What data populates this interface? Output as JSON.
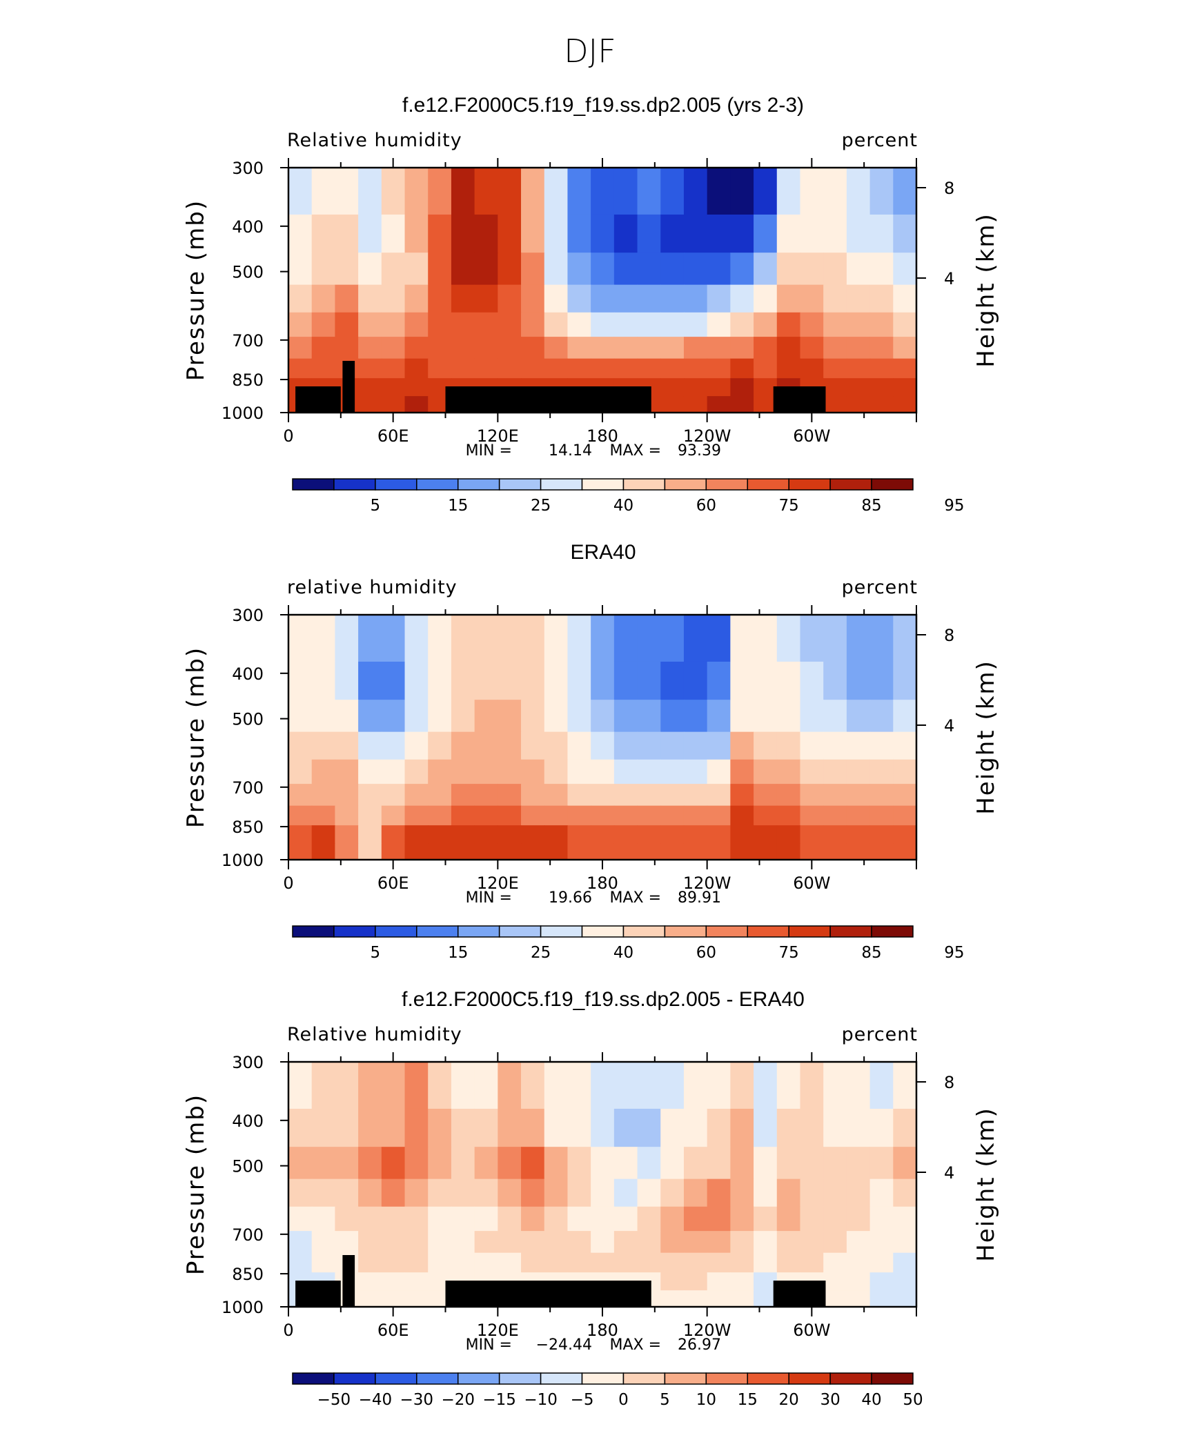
{
  "page": {
    "title": "DJF"
  },
  "chart_data": [
    {
      "type": "heatmap",
      "title": "f.e12.F2000C5.f19_f19.ss.dp2.005 (yrs 2-3)",
      "variable": "Relative humidity",
      "units": "percent",
      "ylabel": "Pressure (mb)",
      "ylabel_right": "Height (km)",
      "x_ticks": [
        "0",
        "60E",
        "120E",
        "180",
        "120W",
        "60W"
      ],
      "y_ticks": [
        "300",
        "400",
        "500",
        "700",
        "850",
        "1000"
      ],
      "y_ticks_right": [
        "8",
        "4"
      ],
      "ylim": [
        1000,
        300
      ],
      "stats": {
        "min_label": "MIN =",
        "min": "14.14",
        "max_label": "MAX =",
        "max": "93.39"
      },
      "colorbar": {
        "labels": [
          "5",
          "15",
          "25",
          "40",
          "60",
          "75",
          "85",
          "95"
        ],
        "colors": [
          "#0b0f7a",
          "#1632c9",
          "#2c5be3",
          "#4c80ef",
          "#7aa6f4",
          "#a9c6f7",
          "#d6e6fa",
          "#fff0e1",
          "#fcd3b8",
          "#f8ae8a",
          "#f2845d",
          "#e85a30",
          "#d53a12",
          "#b0200c",
          "#7d0b06"
        ]
      },
      "levels": [
        [
          6,
          7,
          7,
          6,
          8,
          9,
          10,
          13,
          12,
          12,
          9,
          6,
          3,
          2,
          2,
          3,
          2,
          1,
          0,
          0,
          1,
          6,
          7,
          7,
          6,
          5,
          4
        ],
        [
          7,
          8,
          8,
          6,
          7,
          9,
          11,
          13,
          13,
          12,
          9,
          6,
          3,
          2,
          1,
          2,
          1,
          1,
          1,
          1,
          3,
          7,
          7,
          7,
          6,
          6,
          5
        ],
        [
          7,
          8,
          8,
          7,
          8,
          8,
          11,
          13,
          13,
          12,
          10,
          6,
          4,
          3,
          2,
          2,
          2,
          2,
          2,
          3,
          5,
          8,
          8,
          8,
          7,
          7,
          6
        ],
        [
          8,
          9,
          10,
          8,
          8,
          9,
          11,
          12,
          12,
          11,
          10,
          7,
          5,
          4,
          4,
          4,
          4,
          4,
          5,
          6,
          7,
          9,
          9,
          8,
          8,
          8,
          7
        ],
        [
          9,
          10,
          11,
          9,
          9,
          10,
          11,
          11,
          11,
          11,
          10,
          8,
          7,
          6,
          6,
          6,
          6,
          6,
          7,
          8,
          9,
          11,
          10,
          9,
          9,
          9,
          8
        ],
        [
          10,
          11,
          11,
          10,
          10,
          11,
          11,
          11,
          11,
          11,
          11,
          10,
          9,
          9,
          9,
          9,
          9,
          10,
          10,
          10,
          11,
          12,
          11,
          10,
          10,
          10,
          9
        ],
        [
          11,
          11,
          11,
          11,
          11,
          12,
          11,
          11,
          11,
          11,
          11,
          11,
          11,
          11,
          11,
          11,
          11,
          11,
          11,
          12,
          11,
          12,
          12,
          11,
          11,
          11,
          11
        ],
        [
          12,
          12,
          12,
          12,
          12,
          12,
          12,
          12,
          12,
          12,
          12,
          12,
          12,
          12,
          12,
          12,
          12,
          12,
          12,
          13,
          12,
          13,
          12,
          12,
          12,
          12,
          12
        ],
        [
          12,
          12,
          12,
          12,
          12,
          13,
          12,
          12,
          12,
          12,
          12,
          12,
          12,
          12,
          12,
          12,
          12,
          12,
          13,
          13,
          12,
          13,
          13,
          12,
          12,
          12,
          12
        ]
      ],
      "land_mask_lon_deg": [
        [
          4,
          30
        ],
        [
          31,
          38
        ],
        [
          90,
          208
        ],
        [
          278,
          308
        ]
      ]
    },
    {
      "type": "heatmap",
      "title": "ERA40",
      "variable": "relative humidity",
      "units": "percent",
      "ylabel": "Pressure (mb)",
      "ylabel_right": "Height (km)",
      "x_ticks": [
        "0",
        "60E",
        "120E",
        "180",
        "120W",
        "60W"
      ],
      "y_ticks": [
        "300",
        "400",
        "500",
        "700",
        "850",
        "1000"
      ],
      "y_ticks_right": [
        "8",
        "4"
      ],
      "ylim": [
        1000,
        300
      ],
      "stats": {
        "min_label": "MIN =",
        "min": "19.66",
        "max_label": "MAX =",
        "max": "89.91"
      },
      "colorbar": {
        "labels": [
          "5",
          "15",
          "25",
          "40",
          "60",
          "75",
          "85",
          "95"
        ],
        "colors": [
          "#0b0f7a",
          "#1632c9",
          "#2c5be3",
          "#4c80ef",
          "#7aa6f4",
          "#a9c6f7",
          "#d6e6fa",
          "#fff0e1",
          "#fcd3b8",
          "#f8ae8a",
          "#f2845d",
          "#e85a30",
          "#d53a12",
          "#b0200c",
          "#7d0b06"
        ]
      },
      "levels": [
        [
          7,
          7,
          6,
          4,
          4,
          6,
          7,
          8,
          8,
          8,
          8,
          7,
          6,
          4,
          3,
          3,
          3,
          2,
          2,
          7,
          7,
          6,
          5,
          5,
          4,
          4,
          5
        ],
        [
          7,
          7,
          6,
          3,
          3,
          6,
          7,
          8,
          8,
          8,
          8,
          7,
          6,
          4,
          3,
          3,
          2,
          2,
          3,
          7,
          7,
          7,
          6,
          5,
          4,
          4,
          5
        ],
        [
          7,
          7,
          7,
          4,
          4,
          6,
          7,
          8,
          9,
          9,
          8,
          7,
          6,
          5,
          4,
          4,
          3,
          3,
          4,
          7,
          7,
          7,
          6,
          6,
          5,
          5,
          6
        ],
        [
          8,
          8,
          8,
          6,
          6,
          7,
          8,
          9,
          9,
          9,
          8,
          8,
          7,
          6,
          5,
          5,
          5,
          5,
          5,
          9,
          8,
          8,
          7,
          7,
          7,
          7,
          7
        ],
        [
          8,
          9,
          9,
          7,
          7,
          8,
          9,
          9,
          9,
          9,
          9,
          8,
          7,
          7,
          6,
          6,
          6,
          6,
          7,
          10,
          9,
          9,
          8,
          8,
          8,
          8,
          8
        ],
        [
          9,
          9,
          9,
          8,
          8,
          9,
          9,
          10,
          10,
          10,
          9,
          9,
          8,
          8,
          8,
          8,
          8,
          8,
          8,
          11,
          10,
          10,
          9,
          9,
          9,
          9,
          9
        ],
        [
          10,
          10,
          9,
          8,
          9,
          10,
          10,
          11,
          11,
          11,
          10,
          10,
          10,
          10,
          10,
          10,
          10,
          10,
          10,
          12,
          11,
          11,
          10,
          10,
          10,
          10,
          10
        ],
        [
          11,
          12,
          10,
          8,
          11,
          12,
          12,
          12,
          12,
          12,
          12,
          12,
          11,
          11,
          11,
          11,
          11,
          11,
          11,
          12,
          12,
          12,
          11,
          11,
          11,
          11,
          11
        ],
        [
          11,
          12,
          10,
          8,
          11,
          12,
          12,
          12,
          12,
          12,
          12,
          12,
          11,
          11,
          11,
          11,
          11,
          11,
          11,
          12,
          12,
          12,
          11,
          11,
          11,
          11,
          11
        ]
      ],
      "land_mask_lon_deg": []
    },
    {
      "type": "heatmap",
      "title": "f.e12.F2000C5.f19_f19.ss.dp2.005 - ERA40",
      "variable": "Relative humidity",
      "units": "percent",
      "ylabel": "Pressure (mb)",
      "ylabel_right": "Height (km)",
      "x_ticks": [
        "0",
        "60E",
        "120E",
        "180",
        "120W",
        "60W"
      ],
      "y_ticks": [
        "300",
        "400",
        "500",
        "700",
        "850",
        "1000"
      ],
      "y_ticks_right": [
        "8",
        "4"
      ],
      "ylim": [
        1000,
        300
      ],
      "stats": {
        "min_label": "MIN =",
        "min": "−24.44",
        "max_label": "MAX =",
        "max": "26.97"
      },
      "colorbar": {
        "labels": [
          "−50",
          "−40",
          "−30",
          "−20",
          "−15",
          "−10",
          "−5",
          "0",
          "5",
          "10",
          "15",
          "20",
          "30",
          "40",
          "50"
        ],
        "colors": [
          "#0b0f7a",
          "#1632c9",
          "#2c5be3",
          "#4c80ef",
          "#7aa6f4",
          "#a9c6f7",
          "#d6e6fa",
          "#fff0e1",
          "#fcd3b8",
          "#f8ae8a",
          "#f2845d",
          "#e85a30",
          "#d53a12",
          "#b0200c",
          "#7d0b06"
        ]
      },
      "levels": [
        [
          7,
          8,
          8,
          9,
          9,
          10,
          8,
          7,
          7,
          9,
          8,
          7,
          7,
          6,
          6,
          6,
          6,
          7,
          7,
          8,
          6,
          7,
          8,
          7,
          7,
          6,
          7
        ],
        [
          8,
          8,
          8,
          9,
          9,
          10,
          9,
          8,
          8,
          9,
          9,
          7,
          7,
          6,
          5,
          5,
          7,
          7,
          8,
          9,
          6,
          8,
          8,
          7,
          7,
          7,
          8
        ],
        [
          9,
          9,
          9,
          10,
          11,
          10,
          9,
          8,
          9,
          10,
          11,
          9,
          8,
          7,
          7,
          6,
          7,
          8,
          8,
          9,
          7,
          8,
          8,
          8,
          8,
          8,
          9
        ],
        [
          8,
          8,
          8,
          9,
          10,
          9,
          8,
          8,
          8,
          9,
          10,
          9,
          8,
          7,
          6,
          7,
          8,
          9,
          10,
          9,
          7,
          9,
          8,
          8,
          8,
          7,
          8
        ],
        [
          7,
          7,
          8,
          8,
          8,
          8,
          7,
          7,
          7,
          8,
          9,
          8,
          7,
          7,
          7,
          8,
          9,
          10,
          10,
          9,
          8,
          9,
          8,
          8,
          8,
          7,
          7
        ],
        [
          6,
          7,
          7,
          8,
          8,
          8,
          7,
          7,
          8,
          8,
          8,
          8,
          8,
          7,
          8,
          8,
          9,
          9,
          9,
          8,
          7,
          8,
          8,
          8,
          7,
          7,
          7
        ],
        [
          6,
          7,
          7,
          8,
          8,
          8,
          7,
          7,
          7,
          7,
          8,
          8,
          8,
          8,
          8,
          8,
          8,
          8,
          8,
          8,
          7,
          8,
          8,
          7,
          7,
          7,
          6
        ],
        [
          6,
          6,
          7,
          7,
          7,
          7,
          7,
          7,
          7,
          7,
          7,
          7,
          7,
          7,
          7,
          7,
          8,
          8,
          7,
          7,
          6,
          7,
          7,
          7,
          7,
          6,
          6
        ],
        [
          6,
          6,
          7,
          7,
          7,
          7,
          7,
          7,
          7,
          7,
          7,
          7,
          7,
          7,
          7,
          7,
          7,
          7,
          7,
          7,
          6,
          7,
          7,
          7,
          7,
          6,
          6
        ]
      ],
      "land_mask_lon_deg": [
        [
          4,
          30
        ],
        [
          31,
          38
        ],
        [
          90,
          208
        ],
        [
          278,
          308
        ]
      ]
    }
  ]
}
